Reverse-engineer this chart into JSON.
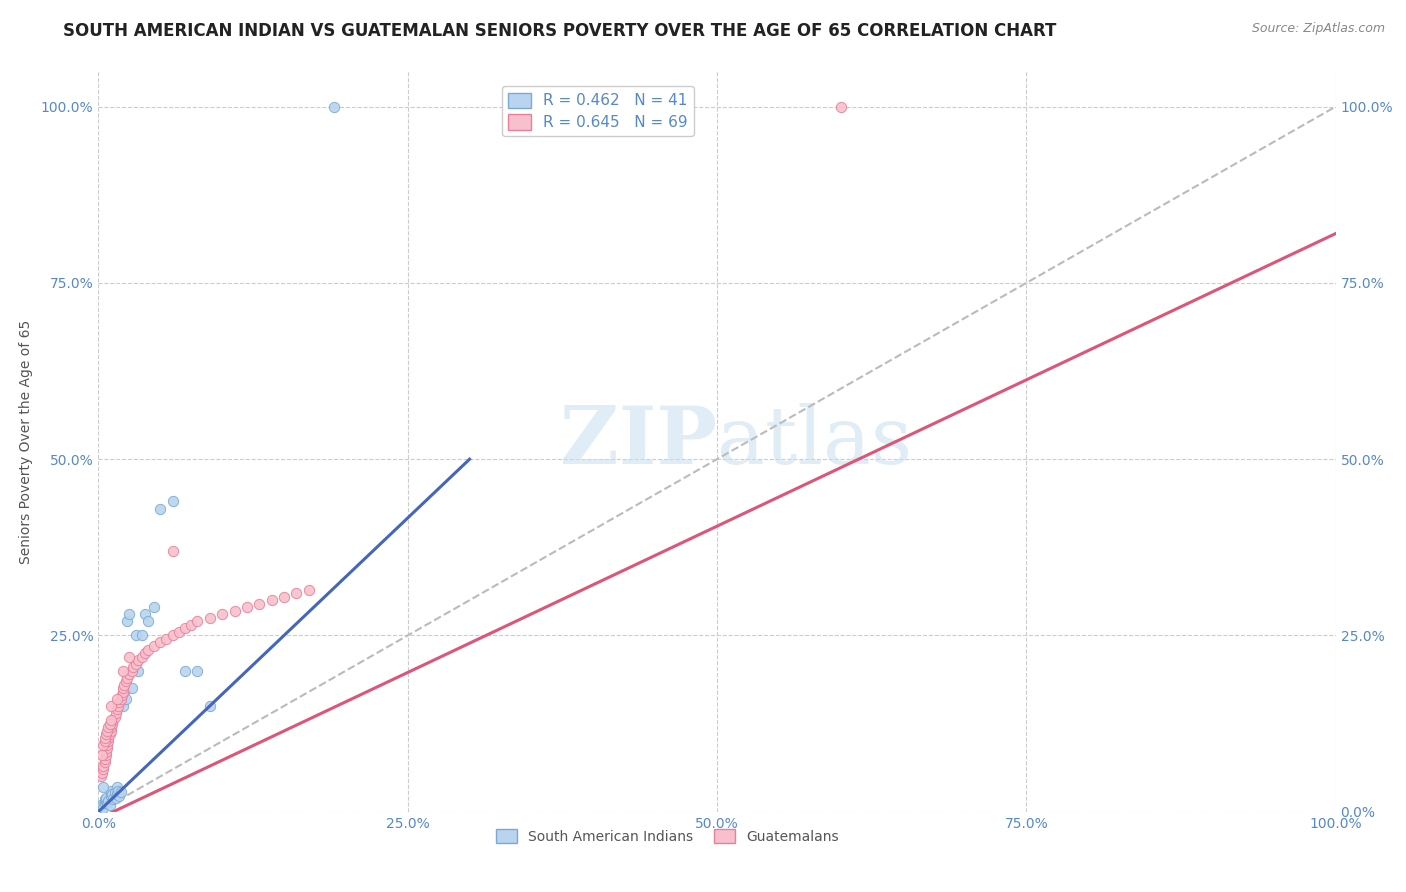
{
  "title": "SOUTH AMERICAN INDIAN VS GUATEMALAN SENIORS POVERTY OVER THE AGE OF 65 CORRELATION CHART",
  "source": "Source: ZipAtlas.com",
  "ylabel": "Seniors Poverty Over the Age of 65",
  "watermark_zip": "ZIP",
  "watermark_atlas": "atlas",
  "blue_R": 0.462,
  "blue_N": 41,
  "pink_R": 0.645,
  "pink_N": 69,
  "blue_color": "#b8d4ee",
  "blue_edge": "#7aaad4",
  "pink_color": "#f8c0cc",
  "pink_edge": "#e8809a",
  "blue_line_color": "#4466bb",
  "pink_line_color": "#dd5577",
  "diagonal_color": "#bbbbbb",
  "legend_label_blue": "South American Indians",
  "legend_label_pink": "Guatemalans",
  "blue_x": [
    0.002,
    0.003,
    0.004,
    0.005,
    0.005,
    0.006,
    0.006,
    0.007,
    0.008,
    0.009,
    0.01,
    0.01,
    0.011,
    0.012,
    0.013,
    0.014,
    0.015,
    0.015,
    0.016,
    0.017,
    0.018,
    0.02,
    0.021,
    0.022,
    0.023,
    0.025,
    0.027,
    0.03,
    0.032,
    0.035,
    0.038,
    0.04,
    0.045,
    0.05,
    0.06,
    0.07,
    0.08,
    0.09,
    0.003,
    0.004,
    0.19
  ],
  "blue_y": [
    0.01,
    0.008,
    0.005,
    0.012,
    0.018,
    0.015,
    0.02,
    0.013,
    0.015,
    0.01,
    0.022,
    0.03,
    0.025,
    0.018,
    0.028,
    0.02,
    0.025,
    0.035,
    0.03,
    0.022,
    0.028,
    0.15,
    0.17,
    0.16,
    0.27,
    0.28,
    0.175,
    0.25,
    0.2,
    0.25,
    0.28,
    0.27,
    0.29,
    0.43,
    0.44,
    0.2,
    0.2,
    0.15,
    0.06,
    0.035,
    1.0
  ],
  "pink_x": [
    0.002,
    0.003,
    0.004,
    0.004,
    0.005,
    0.005,
    0.006,
    0.006,
    0.007,
    0.007,
    0.008,
    0.008,
    0.009,
    0.01,
    0.01,
    0.011,
    0.012,
    0.013,
    0.014,
    0.015,
    0.016,
    0.017,
    0.018,
    0.019,
    0.02,
    0.02,
    0.021,
    0.022,
    0.023,
    0.025,
    0.027,
    0.028,
    0.03,
    0.032,
    0.035,
    0.038,
    0.04,
    0.045,
    0.05,
    0.055,
    0.06,
    0.065,
    0.07,
    0.075,
    0.08,
    0.09,
    0.1,
    0.11,
    0.12,
    0.13,
    0.14,
    0.15,
    0.16,
    0.17,
    0.003,
    0.004,
    0.005,
    0.005,
    0.006,
    0.007,
    0.008,
    0.009,
    0.01,
    0.01,
    0.015,
    0.02,
    0.025,
    0.06,
    0.6
  ],
  "pink_y": [
    0.05,
    0.055,
    0.06,
    0.065,
    0.07,
    0.075,
    0.08,
    0.085,
    0.09,
    0.095,
    0.1,
    0.105,
    0.11,
    0.115,
    0.12,
    0.125,
    0.13,
    0.135,
    0.14,
    0.145,
    0.15,
    0.155,
    0.16,
    0.165,
    0.17,
    0.175,
    0.18,
    0.185,
    0.19,
    0.195,
    0.2,
    0.205,
    0.21,
    0.215,
    0.22,
    0.225,
    0.23,
    0.235,
    0.24,
    0.245,
    0.25,
    0.255,
    0.26,
    0.265,
    0.27,
    0.275,
    0.28,
    0.285,
    0.29,
    0.295,
    0.3,
    0.305,
    0.31,
    0.315,
    0.08,
    0.095,
    0.1,
    0.105,
    0.11,
    0.115,
    0.12,
    0.125,
    0.13,
    0.15,
    0.16,
    0.2,
    0.22,
    0.37,
    1.0
  ],
  "xlim": [
    0.0,
    1.0
  ],
  "ylim": [
    0.0,
    1.05
  ],
  "xticks": [
    0.0,
    0.25,
    0.5,
    0.75,
    1.0
  ],
  "yticks": [
    0.0,
    0.25,
    0.5,
    0.75,
    1.0
  ],
  "xtick_labels": [
    "0.0%",
    "25.0%",
    "50.0%",
    "75.0%",
    "100.0%"
  ],
  "left_ytick_labels": [
    "",
    "25.0%",
    "50.0%",
    "75.0%",
    "100.0%"
  ],
  "right_ytick_labels": [
    "0.0%",
    "25.0%",
    "50.0%",
    "75.0%",
    "100.0%"
  ],
  "tick_color": "#5588cc",
  "tick_fontsize": 10,
  "title_fontsize": 12,
  "source_fontsize": 9,
  "ylabel_fontsize": 10,
  "marker_size": 55,
  "background_color": "#ffffff",
  "grid_color": "#cccccc",
  "blue_line_x": [
    0.0,
    0.3
  ],
  "blue_line_y": [
    0.0,
    0.5
  ],
  "pink_line_x": [
    0.0,
    1.0
  ],
  "pink_line_y": [
    -0.01,
    0.82
  ],
  "diag_line_x": [
    0.0,
    1.0
  ],
  "diag_line_y": [
    0.0,
    1.0
  ]
}
